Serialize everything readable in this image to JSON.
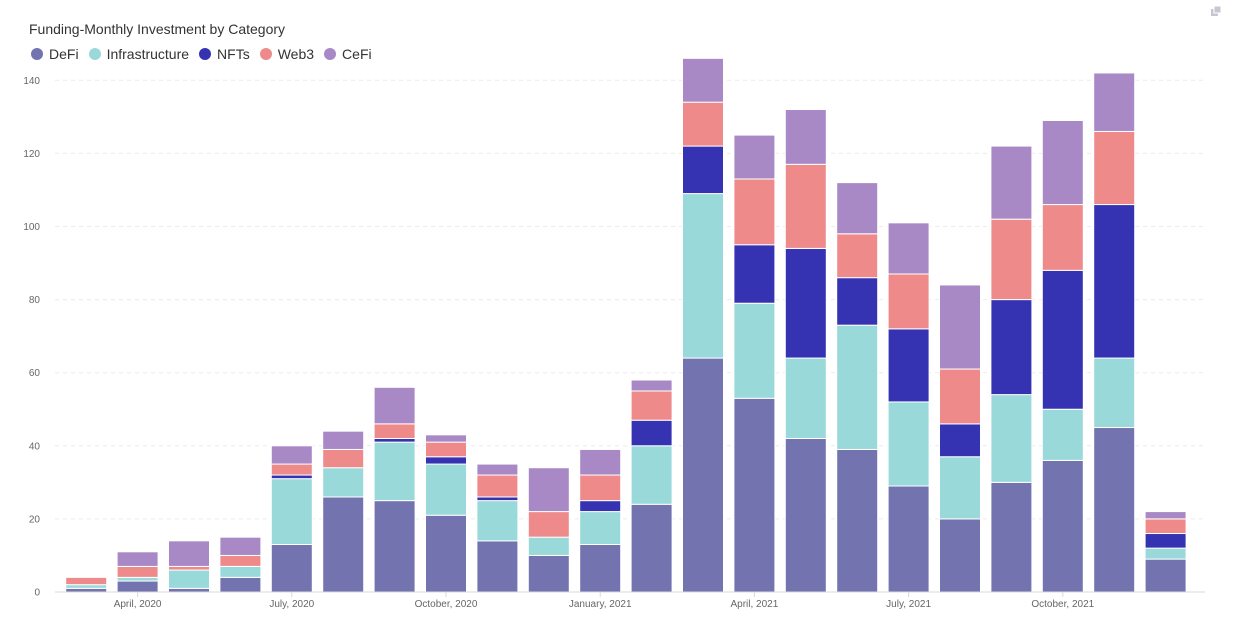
{
  "chart_data": {
    "type": "bar",
    "stacked": true,
    "title": "Funding-Monthly Investment by Category",
    "xlabel": "",
    "ylabel": "",
    "ylim": [
      0,
      145
    ],
    "yticks": [
      0,
      20,
      40,
      60,
      80,
      100,
      120,
      140
    ],
    "grid": true,
    "legend_position": "top-left",
    "categories": [
      "2020-03",
      "2020-04",
      "2020-05",
      "2020-06",
      "2020-07",
      "2020-08",
      "2020-09",
      "2020-10",
      "2020-11",
      "2020-12",
      "2021-01",
      "2021-02",
      "2021-03",
      "2021-04",
      "2021-05",
      "2021-06",
      "2021-07",
      "2021-08",
      "2021-09",
      "2021-10",
      "2021-11",
      "2021-12"
    ],
    "xtick_labels": [
      {
        "category": "2020-04",
        "label": "April, 2020"
      },
      {
        "category": "2020-07",
        "label": "July, 2020"
      },
      {
        "category": "2020-10",
        "label": "October, 2020"
      },
      {
        "category": "2021-01",
        "label": "January, 2021"
      },
      {
        "category": "2021-04",
        "label": "April, 2021"
      },
      {
        "category": "2021-07",
        "label": "July, 2021"
      },
      {
        "category": "2021-10",
        "label": "October, 2021"
      }
    ],
    "series": [
      {
        "name": "DeFi",
        "color": "#7373b0",
        "values": [
          1,
          3,
          1,
          4,
          13,
          26,
          25,
          21,
          14,
          10,
          13,
          24,
          64,
          53,
          42,
          39,
          29,
          20,
          30,
          36,
          45,
          9
        ]
      },
      {
        "name": "Infrastructure",
        "color": "#9ad9d9",
        "values": [
          1,
          1,
          5,
          3,
          18,
          8,
          16,
          14,
          11,
          5,
          9,
          16,
          45,
          26,
          22,
          34,
          23,
          17,
          24,
          14,
          19,
          3
        ]
      },
      {
        "name": "NFTs",
        "color": "#3633b3",
        "values": [
          0,
          0,
          0,
          0,
          1,
          0,
          1,
          2,
          1,
          0,
          3,
          7,
          13,
          16,
          30,
          13,
          20,
          9,
          26,
          38,
          42,
          4
        ]
      },
      {
        "name": "Web3",
        "color": "#ef8a8a",
        "values": [
          2,
          3,
          1,
          3,
          3,
          5,
          4,
          4,
          6,
          7,
          7,
          8,
          12,
          18,
          23,
          12,
          15,
          15,
          22,
          18,
          20,
          4
        ]
      },
      {
        "name": "CeFi",
        "color": "#a889c6",
        "values": [
          0,
          4,
          7,
          5,
          5,
          5,
          10,
          2,
          3,
          12,
          7,
          3,
          12,
          12,
          15,
          14,
          14,
          23,
          20,
          23,
          16,
          2
        ]
      }
    ]
  }
}
